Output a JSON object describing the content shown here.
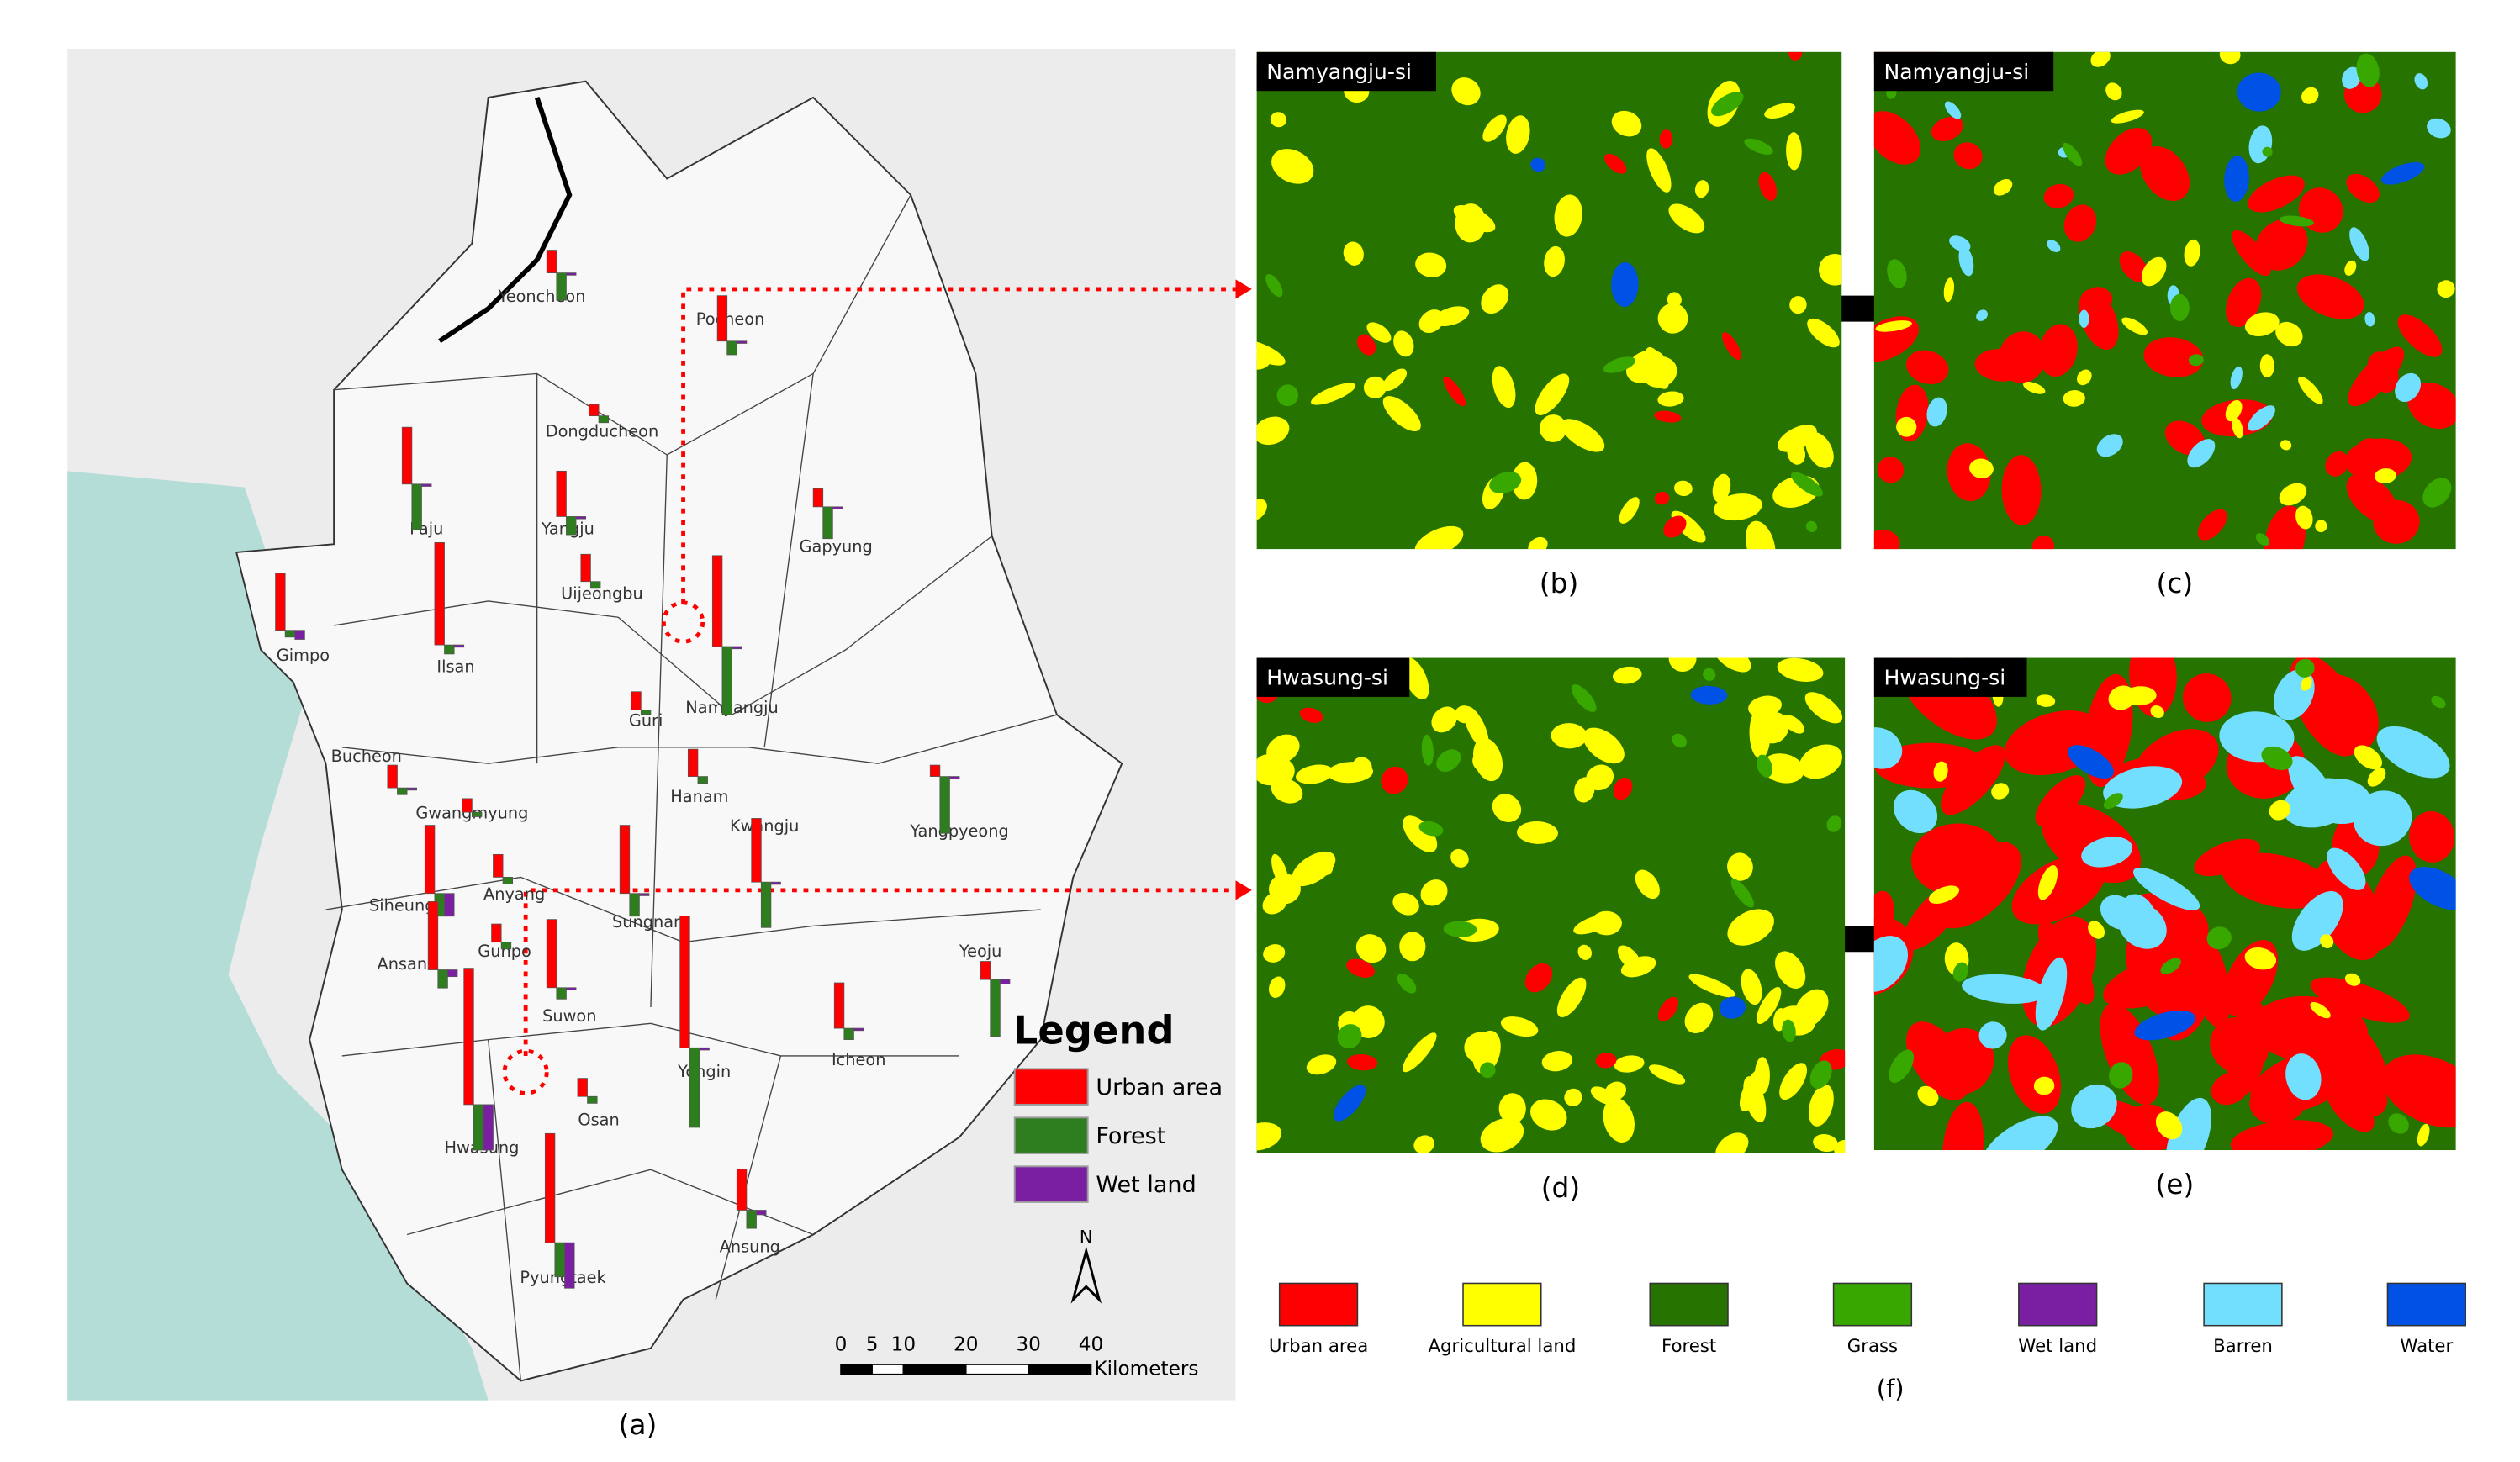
{
  "map": {
    "caption": "(a)",
    "legend_title": "Legend",
    "legend": [
      {
        "label": "Urban area",
        "color": "#ff0000"
      },
      {
        "label": "Forest",
        "color": "#2e7d1e"
      },
      {
        "label": "Wet land",
        "color": "#7b1fa2"
      }
    ],
    "scale_labels": [
      0,
      5,
      10,
      20,
      30,
      40
    ],
    "scale_unit": "Kilometers",
    "north": "N",
    "cities": [
      {
        "name": "Yeoncheon",
        "values": [
          10,
          -12,
          -1
        ]
      },
      {
        "name": "Pocheon",
        "values": [
          20,
          -6,
          -1
        ]
      },
      {
        "name": "Dongducheon",
        "values": [
          5,
          -3,
          0
        ]
      },
      {
        "name": "Paju",
        "values": [
          25,
          -20,
          -1
        ]
      },
      {
        "name": "Yangju",
        "values": [
          20,
          -8,
          -1
        ]
      },
      {
        "name": "Gapyung",
        "values": [
          8,
          -14,
          -1
        ]
      },
      {
        "name": "Uijeongbu",
        "values": [
          12,
          -3,
          0
        ]
      },
      {
        "name": "Gimpo",
        "values": [
          25,
          -3,
          -4
        ]
      },
      {
        "name": "Ilsan",
        "values": [
          45,
          -4,
          -1
        ]
      },
      {
        "name": "Namyangju",
        "values": [
          40,
          -30,
          -1
        ]
      },
      {
        "name": "Guri",
        "values": [
          8,
          -2,
          0
        ]
      },
      {
        "name": "Bucheon",
        "values": [
          10,
          -3,
          -1
        ]
      },
      {
        "name": "Hanam",
        "values": [
          12,
          -3,
          0
        ]
      },
      {
        "name": "Gwangmyung",
        "values": [
          6,
          -2,
          0
        ]
      },
      {
        "name": "Yangpyeong",
        "values": [
          5,
          -25,
          -1
        ]
      },
      {
        "name": "Kwangju",
        "values": [
          28,
          -20,
          -1
        ]
      },
      {
        "name": "Anyang",
        "values": [
          10,
          -3,
          0
        ]
      },
      {
        "name": "Siheung",
        "values": [
          30,
          -10,
          -10
        ]
      },
      {
        "name": "Sungnam",
        "values": [
          30,
          -10,
          -1
        ]
      },
      {
        "name": "Ansan",
        "values": [
          30,
          -8,
          -3
        ]
      },
      {
        "name": "Gunpo",
        "values": [
          8,
          -3,
          0
        ]
      },
      {
        "name": "Suwon",
        "values": [
          30,
          -5,
          -1
        ]
      },
      {
        "name": "Yeoju",
        "values": [
          8,
          -25,
          -2
        ]
      },
      {
        "name": "Icheon",
        "values": [
          20,
          -5,
          -1
        ]
      },
      {
        "name": "Yongin",
        "values": [
          58,
          -35,
          -1
        ]
      },
      {
        "name": "Osan",
        "values": [
          8,
          -3,
          0
        ]
      },
      {
        "name": "Hwasung",
        "values": [
          60,
          -20,
          -20
        ]
      },
      {
        "name": "Ansung",
        "values": [
          18,
          -8,
          -2
        ]
      },
      {
        "name": "Pyungtaek",
        "values": [
          48,
          -15,
          -20
        ]
      }
    ]
  },
  "panels": [
    {
      "title": "Namyangju-si",
      "caption": "(b)"
    },
    {
      "title": "Namyangju-si",
      "caption": "(c)"
    },
    {
      "title": "Hwasung-si",
      "caption": "(d)"
    },
    {
      "title": "Hwasung-si",
      "caption": "(e)"
    }
  ],
  "landcover_legend": {
    "caption": "(f)",
    "items": [
      {
        "label": "Urban area",
        "color": "#ff0000"
      },
      {
        "label": "Agricultural land",
        "color": "#ffff00"
      },
      {
        "label": "Forest",
        "color": "#267300"
      },
      {
        "label": "Grass",
        "color": "#38a800"
      },
      {
        "label": "Wet land",
        "color": "#7a1fa2"
      },
      {
        "label": "Barren",
        "color": "#73dfff"
      },
      {
        "label": "Water",
        "color": "#0052e6"
      }
    ]
  }
}
